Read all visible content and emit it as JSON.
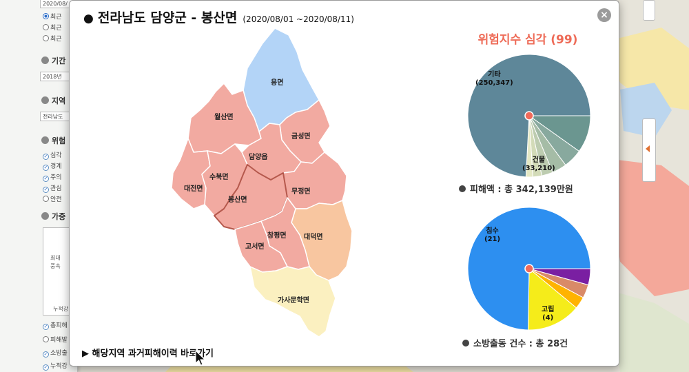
{
  "side_panel": {
    "date_input_top": "2020/08/",
    "period_radios": [
      "최근",
      "최근",
      "최근"
    ],
    "section_period": "기간",
    "period_input": "2018년",
    "section_region": "지역",
    "region_input": "전라남도",
    "section_risk": "위험",
    "risk_levels": [
      "심각",
      "경계",
      "주의",
      "관심",
      "안전"
    ],
    "section_value": "가중",
    "chart_label_max": "최대",
    "chart_label_wind": "풍속",
    "chart_label_cum": "누적강",
    "bottom_checks": [
      "총피해",
      "피해발",
      "소방출",
      "누적강"
    ]
  },
  "popup": {
    "title": "전라남도 담양군 - 봉산면",
    "period": "(2020/08/01 ~2020/08/11)",
    "close_label": "×",
    "risk_text": "위험지수 심각 (99)",
    "history_link": "▶ 해당지역 과거피해이력 바로가기"
  },
  "map": {
    "regions": [
      {
        "name": "용면",
        "color": "#b3d4f7"
      },
      {
        "name": "월산면",
        "color": "#f2aaa1"
      },
      {
        "name": "금성면",
        "color": "#f2aaa1"
      },
      {
        "name": "담양읍",
        "color": "#f2aaa1"
      },
      {
        "name": "수북면",
        "color": "#f2aaa1"
      },
      {
        "name": "대전면",
        "color": "#f2aaa1"
      },
      {
        "name": "봉산면",
        "color": "#f2aaa1"
      },
      {
        "name": "무정면",
        "color": "#f2aaa1"
      },
      {
        "name": "창평면",
        "color": "#f2aaa1"
      },
      {
        "name": "고서면",
        "color": "#f2aaa1"
      },
      {
        "name": "대덕면",
        "color": "#f8c6a0"
      },
      {
        "name": "가사문학면",
        "color": "#fbf0c0"
      }
    ],
    "selected": "봉산면"
  },
  "chart_data": [
    {
      "type": "pie",
      "title": "",
      "slices": [
        {
          "label": "건물",
          "value": 33210,
          "color": "#6b9690"
        },
        {
          "label": "",
          "value": 17000,
          "color": "#88a99e"
        },
        {
          "label": "",
          "value": 13000,
          "color": "#a5bca6"
        },
        {
          "label": "",
          "value": 10000,
          "color": "#bdccb0"
        },
        {
          "label": "",
          "value": 8000,
          "color": "#d3dbb8"
        },
        {
          "label": "",
          "value": 6000,
          "color": "#e4e8c4"
        },
        {
          "label": "기타",
          "value": 250347,
          "color": "#5e8799"
        }
      ],
      "label_texts": {
        "building": "건물",
        "building_value": "(33,210)",
        "other": "기타",
        "other_value": "(250,347)"
      },
      "summary": "피해액 : 총 342,139만원"
    },
    {
      "type": "pie",
      "title": "",
      "slices": [
        {
          "label": "",
          "value": 1.2,
          "color": "#7a1fa2"
        },
        {
          "label": "",
          "value": 1.0,
          "color": "#d98a68"
        },
        {
          "label": "",
          "value": 0.9,
          "color": "#ffb300"
        },
        {
          "label": "고립",
          "value": 4,
          "color": "#f5ec1a"
        },
        {
          "label": "침수",
          "value": 21,
          "color": "#2d8ff0"
        }
      ],
      "label_texts": {
        "isolation": "고립",
        "isolation_value": "(4)",
        "flood": "침수",
        "flood_value": "(21)"
      },
      "summary": "소방출동 건수 : 총 28건"
    }
  ]
}
